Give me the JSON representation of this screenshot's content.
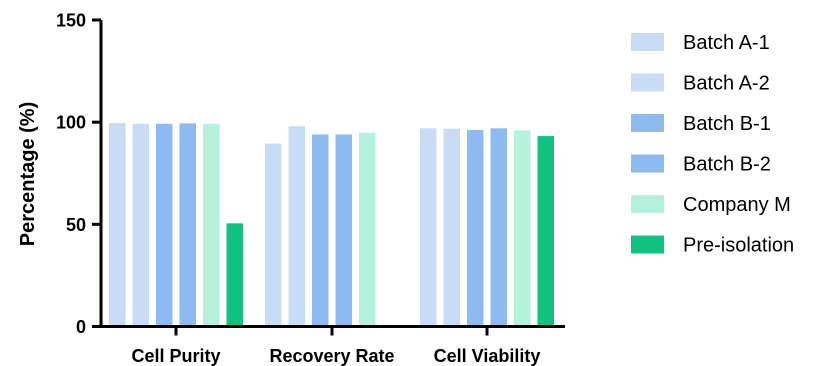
{
  "chart_data": {
    "type": "bar",
    "categories": [
      "Cell Purity",
      "Recovery Rate",
      "Cell Viability"
    ],
    "series": [
      {
        "name": "Batch A-1",
        "color": "#c9dcf5",
        "values": [
          99.5,
          89.5,
          97.0
        ]
      },
      {
        "name": "Batch A-2",
        "color": "#c9dcf5",
        "values": [
          99.2,
          98.0,
          96.8
        ]
      },
      {
        "name": "Batch B-1",
        "color": "#8ebaf2",
        "values": [
          99.2,
          94.0,
          96.2
        ]
      },
      {
        "name": "Batch B-2",
        "color": "#8ebaf2",
        "values": [
          99.4,
          94.0,
          97.0
        ]
      },
      {
        "name": "Company M",
        "color": "#b4f2db",
        "values": [
          99.2,
          94.8,
          96.0
        ]
      },
      {
        "name": "Pre-isolation",
        "color": "#0fc27f",
        "values": [
          50.5,
          null,
          93.2
        ]
      }
    ],
    "ylabel": "Percentage (%)",
    "xlabel": "",
    "yticks": [
      0,
      50,
      100,
      150
    ],
    "ylim": [
      0,
      150
    ],
    "grid": false,
    "legend_position": "right"
  }
}
